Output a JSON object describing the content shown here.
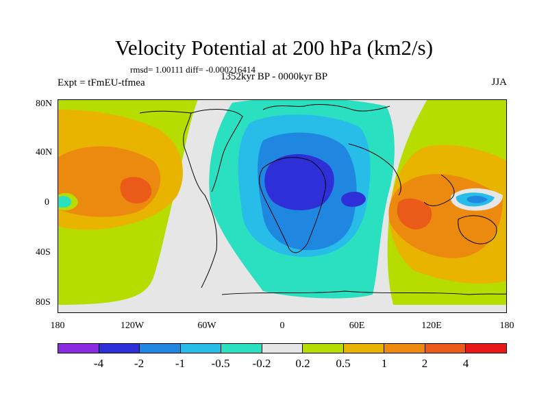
{
  "title": "Velocity Potential at 200 hPa (km2/s)",
  "stats": "rmsd= 1.00111 diff= -0.000216414",
  "experiment": "Expt = tFmEU-tfmea",
  "period": "1352kyr BP - 0000kyr BP",
  "season": "JJA",
  "axes": {
    "y_ticks": [
      "80N",
      "40N",
      "0",
      "40S",
      "80S"
    ],
    "x_ticks": [
      "180",
      "120W",
      "60W",
      "0",
      "60E",
      "120E",
      "180"
    ]
  },
  "colorbar": {
    "colors": [
      "#8a2be2",
      "#2f2fd7",
      "#1f87e0",
      "#27bde8",
      "#2be0c0",
      "#e6e6e6",
      "#b6dc00",
      "#e8b400",
      "#ec8a10",
      "#ea5a18",
      "#e81818"
    ],
    "labels": [
      "-4",
      "-2",
      "-1",
      "-0.5",
      "-0.2",
      "0.2",
      "0.5",
      "1",
      "2",
      "4"
    ]
  }
}
